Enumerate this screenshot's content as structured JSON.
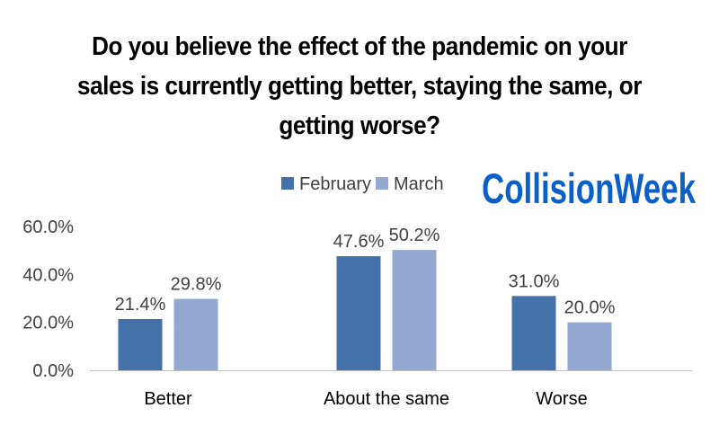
{
  "title": "Do you believe the effect of the pandemic on your sales is currently getting better, staying the same, or getting worse?",
  "logo": "CollisionWeek",
  "chart_data": {
    "type": "bar",
    "title": "Do you believe the effect of the pandemic on your sales is currently getting better, staying the same, or getting worse?",
    "categories": [
      "Better",
      "About the same",
      "Worse"
    ],
    "series": [
      {
        "name": "February",
        "values": [
          21.4,
          47.6,
          31.0
        ],
        "labels": [
          "21.4%",
          "47.6%",
          "31.0%"
        ],
        "color": "#4472a8"
      },
      {
        "name": "March",
        "values": [
          29.8,
          50.2,
          20.0
        ],
        "labels": [
          "29.8%",
          "50.2%",
          "20.0%"
        ],
        "color": "#93a9d2"
      }
    ],
    "yticks": [
      0,
      20,
      40,
      60
    ],
    "ytick_labels": [
      "0.0%",
      "20.0%",
      "40.0%",
      "60.0%"
    ],
    "ylim": [
      0,
      60
    ],
    "grid": false,
    "legend_position": "top-center",
    "colors": {
      "logo": "#0a5fc8",
      "axis": "#bfbfbf",
      "text": "#404040"
    }
  }
}
